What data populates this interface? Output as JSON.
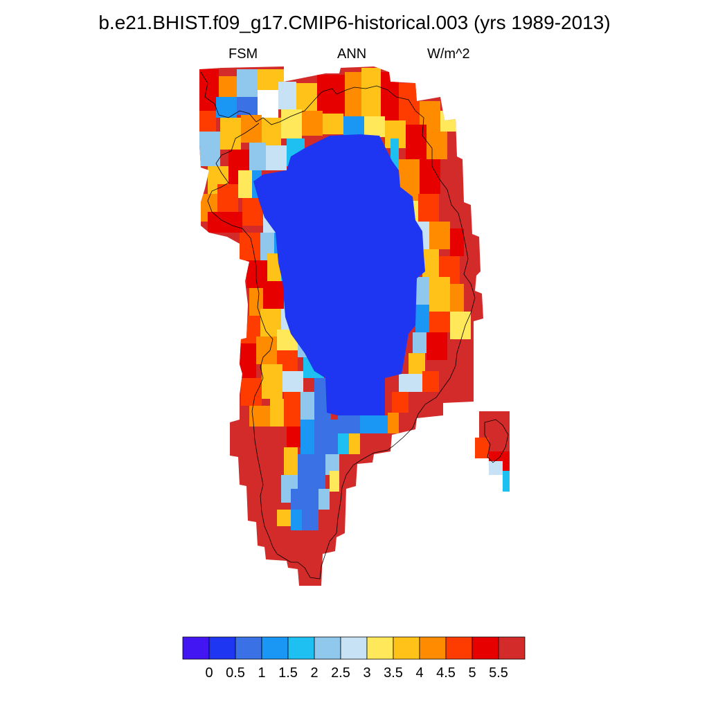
{
  "title": "b.e21.BHIST.f09_g17.CMIP6-historical.003 (yrs 1989-2013)",
  "subtitle": {
    "left": "FSM",
    "center": "ANN",
    "right": "W/m^2"
  },
  "colorbar": {
    "colors": [
      "#4216f2",
      "#1e35f2",
      "#3a72e6",
      "#1a96f5",
      "#1ec0f2",
      "#8fc8ec",
      "#c8e2f5",
      "#ffe85a",
      "#ffc219",
      "#ff8c00",
      "#ff3c00",
      "#e60000",
      "#d32a2a"
    ],
    "labels": [
      "0",
      "0.5",
      "1",
      "1.5",
      "2",
      "2.5",
      "3",
      "3.5",
      "4",
      "4.5",
      "5",
      "5.5"
    ]
  },
  "map": {
    "region": "Greenland",
    "projection": "polar stereographic",
    "coastline": true,
    "field": "FSM",
    "period": "ANN",
    "units": "W/m^2"
  }
}
